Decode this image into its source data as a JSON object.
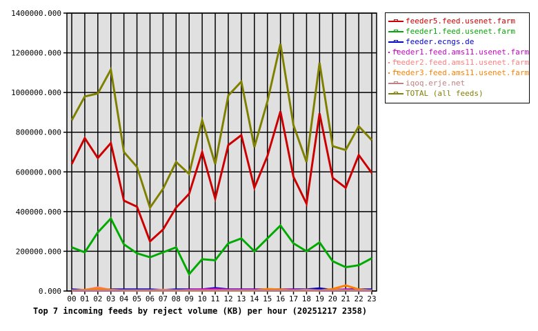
{
  "chart_data": {
    "type": "line",
    "title": "Top 7 incoming feeds by reject volume (KB) per hour (20251217 2358)",
    "xlabel": "",
    "ylabel": "",
    "ylim": [
      0,
      1400000
    ],
    "grid": true,
    "legend_placement": "right",
    "categories": [
      "00",
      "01",
      "02",
      "03",
      "04",
      "05",
      "06",
      "07",
      "08",
      "09",
      "10",
      "11",
      "12",
      "13",
      "14",
      "15",
      "16",
      "17",
      "18",
      "19",
      "20",
      "21",
      "22",
      "23"
    ],
    "y_ticks": [
      "0.000",
      "200000.000",
      "400000.000",
      "600000.000",
      "800000.000",
      "1000000.000",
      "1200000.000",
      "1400000.000"
    ],
    "series": [
      {
        "name": "feeder5.feed.usenet.farm",
        "color": "#cc0000",
        "values": [
          640000,
          770000,
          670000,
          745000,
          455000,
          425000,
          250000,
          310000,
          420000,
          490000,
          700000,
          465000,
          735000,
          785000,
          520000,
          680000,
          905000,
          575000,
          440000,
          895000,
          570000,
          520000,
          685000,
          595000
        ]
      },
      {
        "name": "feeder1.feed.usenet.farm",
        "color": "#00aa00",
        "values": [
          220000,
          195000,
          295000,
          365000,
          235000,
          190000,
          170000,
          195000,
          220000,
          85000,
          160000,
          155000,
          240000,
          265000,
          200000,
          265000,
          330000,
          240000,
          200000,
          245000,
          150000,
          120000,
          130000,
          165000
        ]
      },
      {
        "name": "feeder.ecngs.de",
        "color": "#0000cc",
        "values": [
          8000,
          5000,
          5000,
          8000,
          8000,
          8000,
          8000,
          5000,
          8000,
          8000,
          8000,
          15000,
          8000,
          8000,
          8000,
          8000,
          8000,
          8000,
          8000,
          13000,
          5000,
          8000,
          8000,
          8000
        ]
      },
      {
        "name": "feeder1.feed.ams11.usenet.farm",
        "color": "#cc00cc",
        "values": [
          2000,
          2000,
          2000,
          2000,
          2000,
          2000,
          2000,
          2000,
          2000,
          6000,
          8000,
          10000,
          6000,
          6000,
          6000,
          8000,
          8000,
          6000,
          2000,
          2000,
          2000,
          8000,
          2000,
          2000
        ]
      },
      {
        "name": "feeder2.feed.ams11.usenet.farm",
        "color": "#ff8080",
        "values": [
          3000,
          5000,
          18000,
          5000,
          3000,
          3000,
          3000,
          6000,
          3000,
          3000,
          3000,
          3000,
          3000,
          3000,
          3000,
          3000,
          3000,
          3000,
          6000,
          3000,
          6000,
          3000,
          3000,
          3000
        ]
      },
      {
        "name": "feeder3.feed.ams11.usenet.farm",
        "color": "#ff8000",
        "values": [
          2000,
          6000,
          12000,
          6000,
          2000,
          2000,
          2000,
          2000,
          2000,
          2000,
          2000,
          2000,
          2000,
          2000,
          2000,
          10000,
          8000,
          2000,
          2000,
          2000,
          10000,
          28000,
          8000,
          2000
        ]
      },
      {
        "name": "iqoq.erje.net",
        "color": "#c08080",
        "values": [
          3000,
          3000,
          3000,
          3000,
          3000,
          3000,
          3000,
          3000,
          3000,
          3000,
          3000,
          3000,
          3000,
          3000,
          3000,
          3000,
          3000,
          3000,
          3000,
          3000,
          3000,
          3000,
          3000,
          3000
        ]
      },
      {
        "name": "TOTAL (all feeds)",
        "color": "#808000",
        "values": [
          860000,
          980000,
          995000,
          1115000,
          700000,
          625000,
          420000,
          515000,
          650000,
          590000,
          860000,
          640000,
          985000,
          1055000,
          725000,
          955000,
          1245000,
          835000,
          650000,
          1150000,
          730000,
          710000,
          830000,
          760000
        ]
      }
    ]
  }
}
